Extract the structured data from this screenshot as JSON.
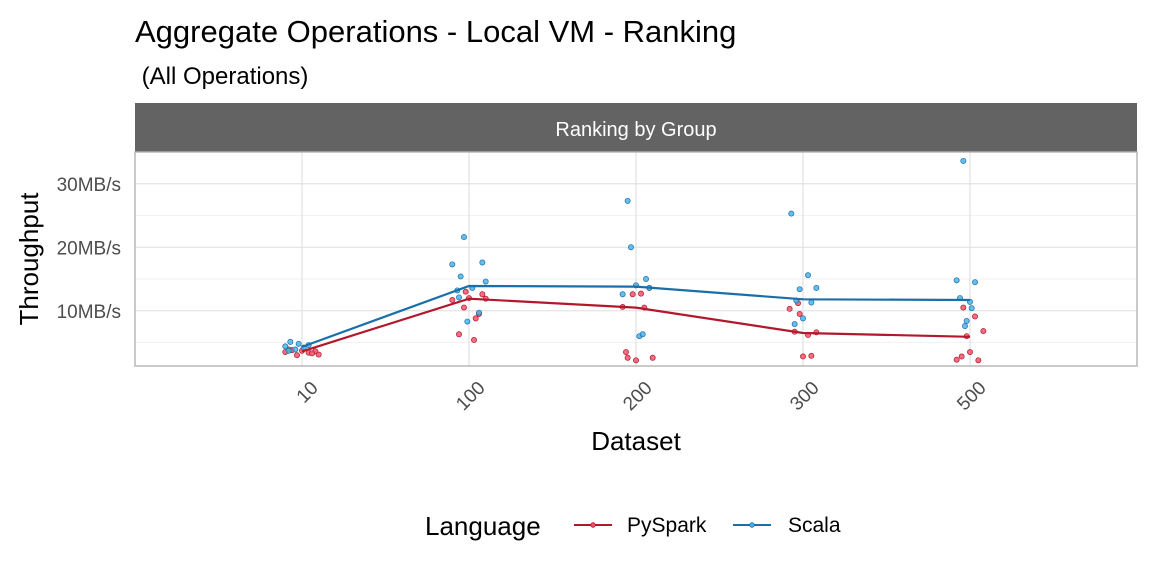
{
  "chart_data": {
    "type": "line",
    "title": "Aggregate Operations - Local VM - Ranking",
    "subtitle": " (All Operations)",
    "facet_label": "Ranking by Group",
    "xlabel": "Dataset",
    "ylabel": "Throughput",
    "categories": [
      "10",
      "100",
      "200",
      "300",
      "500"
    ],
    "y_ticks": [
      {
        "value": 10,
        "label": "10MB/s"
      },
      {
        "value": 20,
        "label": "20MB/s"
      },
      {
        "value": 30,
        "label": "30MB/s"
      }
    ],
    "ylim": [
      1.3,
      35.0
    ],
    "grid": true,
    "legend": {
      "title": "Language",
      "position": "bottom"
    },
    "series": [
      {
        "name": "PySpark",
        "color": "#b2182b",
        "point_fill": "#f1536b",
        "values": [
          3.6,
          11.9,
          10.5,
          6.5,
          5.9
        ],
        "points": [
          [
            [
              -0.1,
              3.5
            ],
            [
              -0.06,
              3.8
            ],
            [
              -0.03,
              3.0
            ],
            [
              0.0,
              3.7
            ],
            [
              0.04,
              3.4
            ],
            [
              0.08,
              3.6
            ],
            [
              0.1,
              3.1
            ],
            [
              -0.08,
              3.9
            ],
            [
              0.06,
              3.3
            ]
          ],
          [
            [
              -0.1,
              11.7
            ],
            [
              -0.06,
              6.3
            ],
            [
              -0.03,
              10.5
            ],
            [
              0.0,
              12.0
            ],
            [
              0.03,
              5.4
            ],
            [
              0.06,
              9.5
            ],
            [
              0.08,
              12.6
            ],
            [
              0.1,
              11.9
            ],
            [
              0.04,
              8.8
            ],
            [
              -0.02,
              13.0
            ]
          ],
          [
            [
              -0.08,
              10.6
            ],
            [
              -0.05,
              2.6
            ],
            [
              -0.02,
              12.6
            ],
            [
              0.0,
              2.2
            ],
            [
              0.03,
              12.7
            ],
            [
              0.05,
              10.5
            ],
            [
              0.08,
              13.6
            ],
            [
              0.1,
              2.6
            ],
            [
              -0.06,
              3.5
            ]
          ],
          [
            [
              -0.08,
              10.3
            ],
            [
              -0.05,
              6.7
            ],
            [
              -0.02,
              9.5
            ],
            [
              0.0,
              2.8
            ],
            [
              0.03,
              6.2
            ],
            [
              0.05,
              2.9
            ],
            [
              0.08,
              6.6
            ],
            [
              -0.03,
              11.2
            ]
          ],
          [
            [
              -0.08,
              2.3
            ],
            [
              -0.05,
              2.8
            ],
            [
              -0.02,
              6.0
            ],
            [
              0.0,
              3.5
            ],
            [
              0.03,
              9.1
            ],
            [
              0.05,
              2.2
            ],
            [
              0.08,
              6.8
            ],
            [
              -0.04,
              10.5
            ]
          ]
        ]
      },
      {
        "name": "Scala",
        "color": "#1a6fa8",
        "point_fill": "#4ab3ea",
        "values": [
          4.3,
          13.9,
          13.8,
          11.8,
          11.7
        ],
        "points": [
          [
            [
              -0.1,
              4.4
            ],
            [
              -0.07,
              5.1
            ],
            [
              -0.04,
              3.9
            ],
            [
              -0.02,
              4.8
            ],
            [
              0.01,
              4.2
            ],
            [
              0.04,
              4.6
            ],
            [
              -0.08,
              3.7
            ]
          ],
          [
            [
              -0.1,
              17.3
            ],
            [
              -0.07,
              13.2
            ],
            [
              -0.05,
              15.4
            ],
            [
              -0.03,
              21.6
            ],
            [
              -0.01,
              8.3
            ],
            [
              0.02,
              13.6
            ],
            [
              0.06,
              9.7
            ],
            [
              0.08,
              17.6
            ],
            [
              0.1,
              14.6
            ],
            [
              -0.06,
              12.1
            ]
          ],
          [
            [
              -0.08,
              12.6
            ],
            [
              -0.05,
              27.3
            ],
            [
              -0.03,
              20.0
            ],
            [
              0.0,
              14.0
            ],
            [
              0.02,
              6.0
            ],
            [
              0.04,
              6.3
            ],
            [
              0.06,
              15.0
            ],
            [
              0.08,
              13.6
            ]
          ],
          [
            [
              -0.07,
              25.3
            ],
            [
              -0.04,
              11.6
            ],
            [
              -0.02,
              13.4
            ],
            [
              0.0,
              8.8
            ],
            [
              0.03,
              15.6
            ],
            [
              0.05,
              11.3
            ],
            [
              0.08,
              13.6
            ],
            [
              -0.05,
              7.9
            ]
          ],
          [
            [
              -0.08,
              14.8
            ],
            [
              -0.06,
              12.0
            ],
            [
              -0.04,
              33.6
            ],
            [
              -0.02,
              8.4
            ],
            [
              0.0,
              11.4
            ],
            [
              0.03,
              14.5
            ],
            [
              0.01,
              10.4
            ],
            [
              -0.03,
              7.6
            ]
          ]
        ]
      }
    ]
  }
}
